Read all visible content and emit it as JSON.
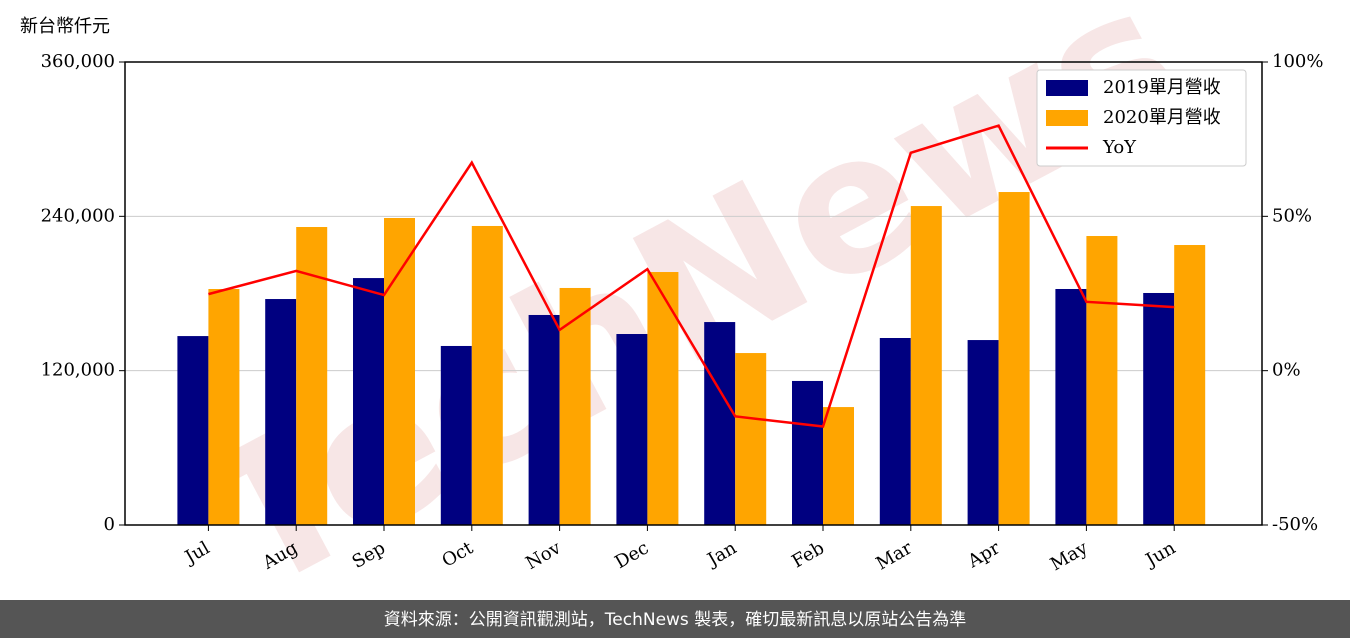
{
  "chart_data": {
    "type": "bar",
    "unit_label": "新台幣仟元",
    "watermark": "TechNews",
    "source": "資料來源：公開資訊觀測站，TechNews 製表，確切最新訊息以原站公告為準",
    "categories": [
      "Jul",
      "Aug",
      "Sep",
      "Oct",
      "Nov",
      "Dec",
      "Jan",
      "Feb",
      "Mar",
      "Apr",
      "May",
      "Jun"
    ],
    "series": [
      {
        "name": "2019單月營收",
        "type": "bar",
        "color": "#000080",
        "values": [
          146900,
          175700,
          192000,
          139200,
          163300,
          148500,
          157800,
          112000,
          145400,
          143800,
          183500,
          180400
        ]
      },
      {
        "name": "2020單月營收",
        "type": "bar",
        "color": "#ffa500",
        "values": [
          183500,
          231700,
          238700,
          232500,
          184300,
          196700,
          133700,
          91700,
          248000,
          258900,
          224700,
          217700
        ]
      },
      {
        "name": "YoY",
        "type": "line",
        "axis": "y2",
        "color": "#ff0000",
        "values": [
          24.8,
          32.3,
          24.5,
          67.4,
          13.2,
          32.9,
          -14.8,
          -18.1,
          70.6,
          79.4,
          22.3,
          20.6
        ]
      }
    ],
    "ylim": [
      0,
      360000
    ],
    "yticks": [
      0,
      {
        "value": 120000,
        "label": "120,000"
      },
      {
        "value": 240000,
        "label": "240,000"
      },
      {
        "value": 360000,
        "label": "360,000"
      }
    ],
    "y2lim": [
      -50,
      100
    ],
    "y2ticks": [
      {
        "value": -50,
        "label": "-50%"
      },
      {
        "value": 0,
        "label": "0%"
      },
      {
        "value": 50,
        "label": "50%"
      },
      {
        "value": 100,
        "label": "100%"
      }
    ],
    "grid": true,
    "legend": "upper right"
  }
}
